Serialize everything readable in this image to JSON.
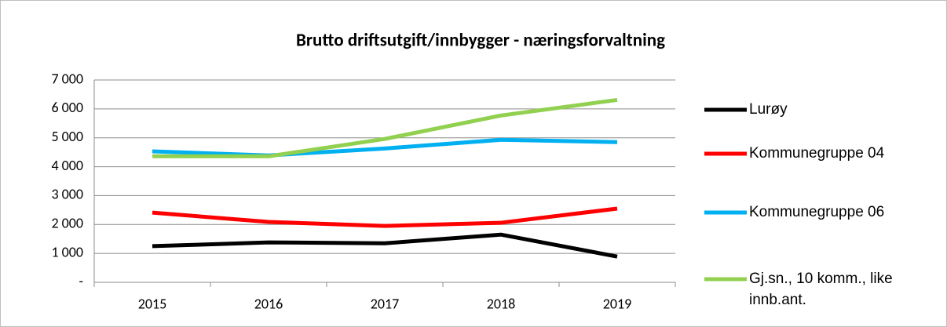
{
  "chart_data": {
    "type": "line",
    "title": "Brutto driftsutgift/innbygger - næringsforvaltning",
    "categories": [
      "2015",
      "2016",
      "2017",
      "2018",
      "2019"
    ],
    "series": [
      {
        "name": "Lurøy",
        "color": "#000000",
        "values": [
          1250,
          1380,
          1350,
          1650,
          890
        ]
      },
      {
        "name": "Kommunegruppe 04",
        "color": "#ff0000",
        "values": [
          2410,
          2090,
          1950,
          2060,
          2550
        ]
      },
      {
        "name": "Kommunegruppe 06",
        "color": "#00b0f0",
        "values": [
          4530,
          4390,
          4630,
          4930,
          4850
        ]
      },
      {
        "name": "Gj.sn., 10 komm., like innb.ant.",
        "color": "#92d050",
        "values": [
          4360,
          4360,
          4960,
          5770,
          6310
        ]
      }
    ],
    "ylim": [
      0,
      7000
    ],
    "yticks": [
      {
        "value": 0,
        "label": "-"
      },
      {
        "value": 1000,
        "label": "1 000"
      },
      {
        "value": 2000,
        "label": "2 000"
      },
      {
        "value": 3000,
        "label": "3 000"
      },
      {
        "value": 4000,
        "label": "4 000"
      },
      {
        "value": 5000,
        "label": "5 000"
      },
      {
        "value": 6000,
        "label": "6 000"
      },
      {
        "value": 7000,
        "label": "7 000"
      }
    ],
    "grid": true,
    "legend": "right"
  }
}
